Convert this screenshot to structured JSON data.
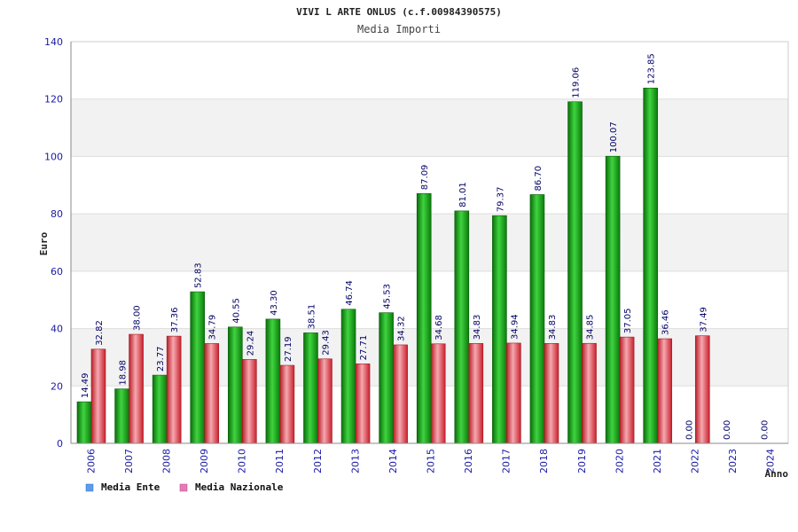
{
  "chart_data": {
    "type": "bar",
    "title": "VIVI L ARTE ONLUS (c.f.00984390575)",
    "subtitle": "Media Importi",
    "xlabel": "Anno",
    "ylabel": "Euro",
    "ylim": [
      0,
      140
    ],
    "yticks": [
      0,
      20,
      40,
      60,
      80,
      100,
      120,
      140
    ],
    "grid": true,
    "legend_position": "bottom-left",
    "categories": [
      "2006",
      "2007",
      "2008",
      "2009",
      "2010",
      "2011",
      "2012",
      "2013",
      "2014",
      "2015",
      "2016",
      "2017",
      "2018",
      "2019",
      "2020",
      "2021",
      "2022",
      "2023",
      "2024"
    ],
    "series": [
      {
        "name": "Media Ente",
        "color": "#1fa51f",
        "legend_color": "#5b9bf0",
        "values": [
          14.49,
          18.98,
          23.77,
          52.83,
          40.55,
          43.3,
          38.51,
          46.74,
          45.53,
          87.09,
          81.01,
          79.37,
          86.7,
          119.06,
          100.07,
          123.85,
          0.0,
          0.0,
          0.0
        ],
        "labels": [
          "14.49",
          "18.98",
          "23.77",
          "52.83",
          "40.55",
          "43.30",
          "38.51",
          "46.74",
          "45.53",
          "87.09",
          "81.01",
          "79.37",
          "86.70",
          "119.06",
          "100.07",
          "123.85",
          "0.00",
          "0.00",
          "0.00"
        ]
      },
      {
        "name": "Media Nazionale",
        "color": "#e0303a",
        "legend_color": "#e87ab8",
        "values": [
          32.82,
          38.0,
          37.36,
          34.79,
          29.24,
          27.19,
          29.43,
          27.71,
          34.32,
          34.68,
          34.83,
          34.94,
          34.83,
          34.85,
          37.05,
          36.46,
          37.49,
          null,
          null
        ],
        "labels": [
          "32.82",
          "38.00",
          "37.36",
          "34.79",
          "29.24",
          "27.19",
          "29.43",
          "27.71",
          "34.32",
          "34.68",
          "34.83",
          "34.94",
          "34.83",
          "34.85",
          "37.05",
          "36.46",
          "37.49",
          "",
          ""
        ]
      }
    ]
  }
}
